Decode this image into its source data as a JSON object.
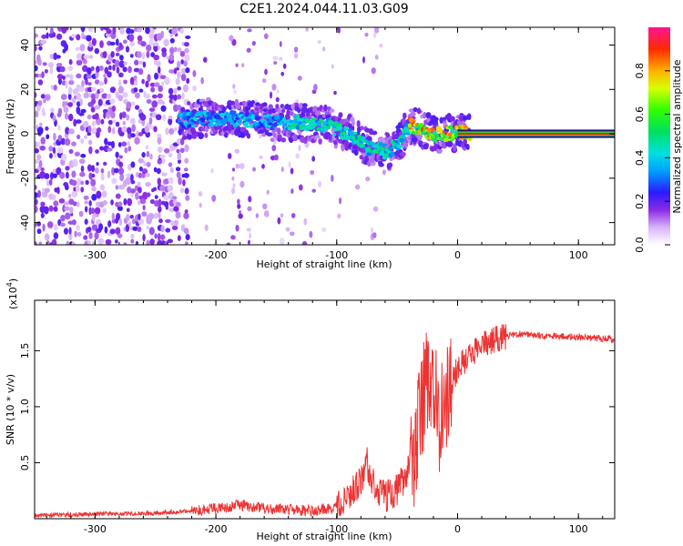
{
  "title": "C2E1.2024.044.11.03.G09",
  "chart_data": [
    {
      "type": "heatmap",
      "xlabel": "Height of straight line (km)",
      "ylabel": "Frequency (Hz)",
      "xlim": [
        -350,
        130
      ],
      "ylim": [
        -50,
        48
      ],
      "xticks": [
        -300,
        -200,
        -100,
        0,
        100
      ],
      "yticks": [
        -40,
        -20,
        0,
        20,
        40
      ],
      "grid": false,
      "colorbar": {
        "label": "Normalized spectral amplitude",
        "range": [
          0,
          1
        ],
        "ticks": [
          "0.0",
          "0.2",
          "0.4",
          "0.6",
          "0.8"
        ]
      },
      "ridge": {
        "x": [
          -225,
          -210,
          -190,
          -170,
          -150,
          -130,
          -110,
          -90,
          -75,
          -60,
          -50,
          -40,
          -30,
          -20,
          -10,
          0,
          10,
          130
        ],
        "y": [
          6,
          7,
          7,
          6,
          5,
          5,
          4,
          0,
          -6,
          -8,
          -5,
          4,
          2,
          0,
          0,
          1,
          0,
          0
        ]
      }
    },
    {
      "type": "line",
      "xlabel": "Height of straight line (km)",
      "ylabel": "SNR (10 * v/v)",
      "yscale_label": "(x10",
      "yscale_exp": "4",
      "xlim": [
        -350,
        130
      ],
      "ylim": [
        0,
        1.95
      ],
      "xticks": [
        -300,
        -200,
        -100,
        0,
        100
      ],
      "yticks": [
        "0.5",
        "1.0",
        "1.5"
      ],
      "grid": false,
      "series": [
        {
          "color": "#ee3333",
          "x": [
            -350,
            -300,
            -250,
            -220,
            -200,
            -180,
            -160,
            -140,
            -120,
            -100,
            -90,
            -80,
            -75,
            -70,
            -60,
            -50,
            -40,
            -35,
            -30,
            -25,
            -20,
            -15,
            -10,
            -5,
            0,
            10,
            20,
            30,
            40,
            50,
            60,
            80,
            100,
            120,
            130
          ],
          "y": [
            0.03,
            0.04,
            0.05,
            0.07,
            0.09,
            0.12,
            0.09,
            0.08,
            0.07,
            0.1,
            0.2,
            0.35,
            0.5,
            0.3,
            0.2,
            0.25,
            0.45,
            0.6,
            1.0,
            1.3,
            1.25,
            0.9,
            1.0,
            1.2,
            1.35,
            1.45,
            1.55,
            1.6,
            1.63,
            1.65,
            1.64,
            1.63,
            1.62,
            1.61,
            1.6
          ]
        }
      ]
    }
  ]
}
